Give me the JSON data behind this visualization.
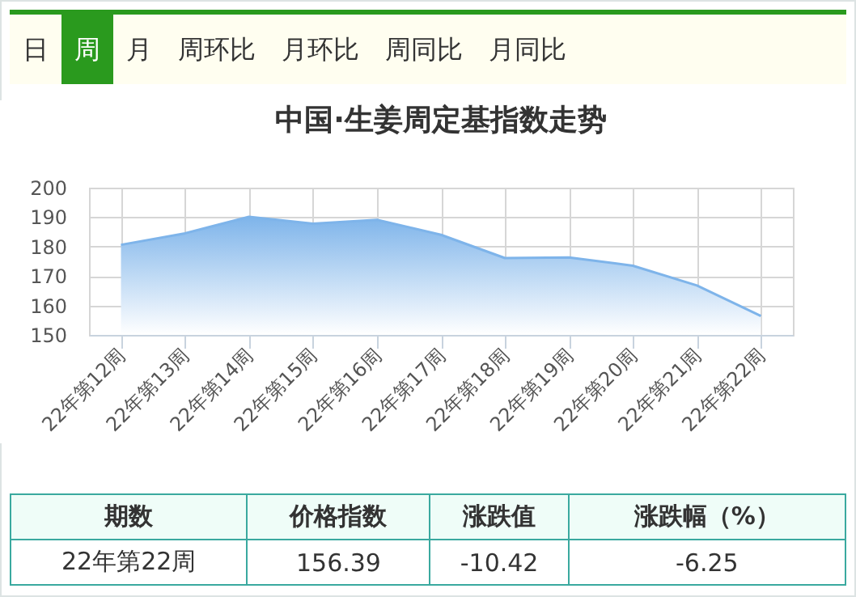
{
  "chart_data": {
    "type": "area",
    "title": "中国·生姜周定基指数走势",
    "categories": [
      "22年第12周",
      "22年第13周",
      "22年第14周",
      "22年第15周",
      "22年第16周",
      "22年第17周",
      "22年第18周",
      "22年第19周",
      "22年第20周",
      "22年第21周",
      "22年第22周"
    ],
    "series": [
      {
        "color": "#7eb4ea",
        "values": [
          180.6,
          184.5,
          190.1,
          187.8,
          189.1,
          184.0,
          176.1,
          176.3,
          173.5,
          166.8,
          156.4
        ]
      }
    ],
    "ylim": [
      150,
      200
    ],
    "yticks": [
      150,
      160,
      170,
      180,
      190,
      200
    ],
    "grid": true,
    "annotations": [
      "日",
      "周",
      "月",
      "周环比",
      "月环比",
      "周同比",
      "月同比",
      "期数",
      "价格指数",
      "涨跌值",
      "涨跌幅（%）",
      "22年第22周",
      "156.39",
      "-10.42",
      "-6.25"
    ]
  }
}
